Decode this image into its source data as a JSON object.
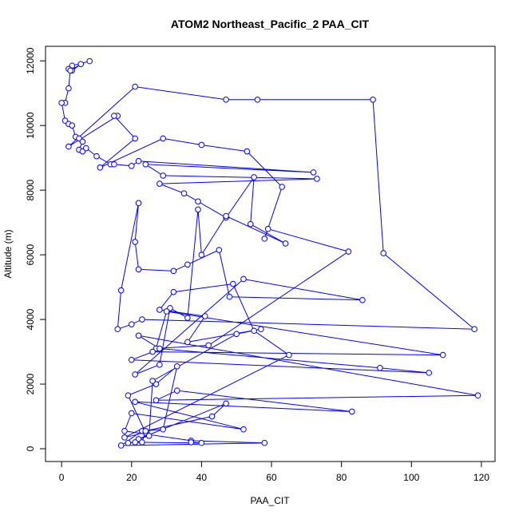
{
  "chart_data": {
    "type": "line-points",
    "title": "ATOM2 Northeast_Pacific_2 PAA_CIT",
    "x_label": "PAA_CIT",
    "y_label": "Altitude (m)",
    "color": "#0000ff",
    "xlim": [
      -4.6,
      123.9
    ],
    "ylim": [
      -395,
      12450
    ],
    "xticks": [
      0,
      20,
      40,
      60,
      80,
      100,
      120
    ],
    "yticks": [
      0,
      2000,
      4000,
      6000,
      8000,
      10000,
      12000
    ],
    "x": [
      8,
      3,
      2,
      3,
      5.5,
      2.5,
      2,
      1,
      0,
      1,
      2,
      3,
      4,
      5,
      6,
      5,
      6,
      7,
      10,
      14,
      15,
      20,
      22,
      72,
      24,
      29,
      73,
      28,
      35,
      39,
      47,
      55,
      54,
      64,
      47,
      40,
      39,
      36,
      31,
      28,
      21,
      52,
      86,
      48,
      45,
      36,
      32,
      22,
      21,
      22,
      17,
      16,
      20,
      23,
      118,
      92,
      89,
      56,
      47,
      21,
      2,
      16,
      15,
      21,
      11,
      29,
      40,
      53,
      63,
      58,
      59,
      82,
      42,
      27,
      30,
      109,
      26,
      20,
      105,
      91,
      28,
      22,
      119,
      27,
      33,
      83,
      21,
      52,
      20,
      18,
      37,
      58,
      17,
      23,
      29,
      33,
      27,
      19,
      24,
      18,
      65,
      55,
      49,
      32,
      28,
      41,
      36,
      57,
      50,
      26,
      25,
      22,
      47,
      43,
      24,
      23,
      19,
      21,
      40,
      37
    ],
    "y": [
      11990,
      11850,
      11750,
      11700,
      11900,
      11700,
      11150,
      10700,
      10700,
      10150,
      10050,
      10000,
      9650,
      9600,
      9500,
      9250,
      9200,
      9300,
      9050,
      8800,
      8800,
      8750,
      8900,
      8550,
      8800,
      8450,
      8350,
      8200,
      7900,
      7650,
      7150,
      8400,
      6950,
      6350,
      7200,
      6000,
      7400,
      4050,
      4350,
      2600,
      2300,
      5250,
      4600,
      4700,
      6150,
      5700,
      5500,
      5550,
      6400,
      7600,
      4900,
      3700,
      3850,
      4000,
      3700,
      6050,
      10800,
      10800,
      10800,
      11200,
      9350,
      10300,
      10300,
      9600,
      8700,
      9600,
      9400,
      9200,
      8100,
      6500,
      6800,
      6100,
      3200,
      3100,
      4250,
      2900,
      3000,
      2750,
      2350,
      2500,
      3100,
      3500,
      1650,
      1500,
      1800,
      1150,
      1450,
      600,
      1100,
      550,
      250,
      180,
      100,
      550,
      600,
      2550,
      2000,
      1650,
      500,
      350,
      2900,
      3650,
      5100,
      4850,
      4300,
      4100,
      3300,
      3700,
      3550,
      2100,
      400,
      300,
      1400,
      1000,
      550,
      200,
      180,
      200,
      180,
      200
    ]
  }
}
